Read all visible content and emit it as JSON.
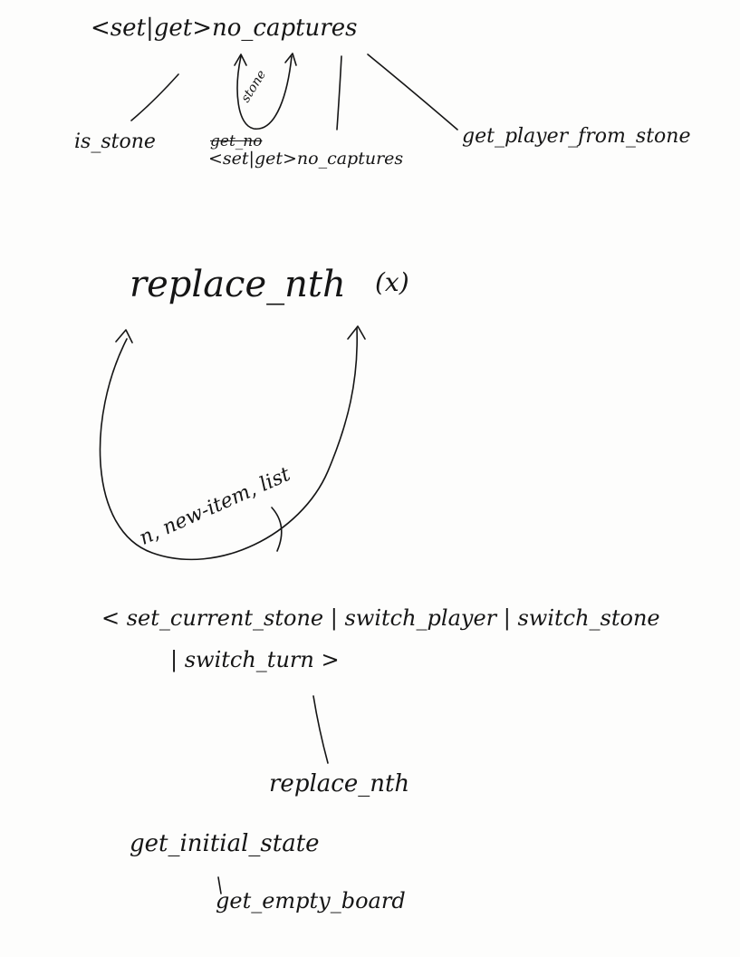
{
  "diagram_1": {
    "root": "<set|get>no_captures",
    "self_loop_label": "stone",
    "children": {
      "left": "is_stone",
      "middle_struck": "get_no",
      "middle": "<set|get>no_captures",
      "right": "get_player_from_stone"
    }
  },
  "diagram_2": {
    "root": "replace_nth",
    "root_mark": "(x)",
    "loop_label": "n, new-item, list"
  },
  "diagram_3": {
    "root_line1": "< set_current_stone | switch_player | switch_stone",
    "root_line2": "| switch_turn >",
    "child": "replace_nth",
    "grandchild_1": "get_initial_state",
    "grandchild_2": "get_empty_board"
  },
  "colors": {
    "ink": "#151515",
    "paper": "#fdfdfc"
  }
}
